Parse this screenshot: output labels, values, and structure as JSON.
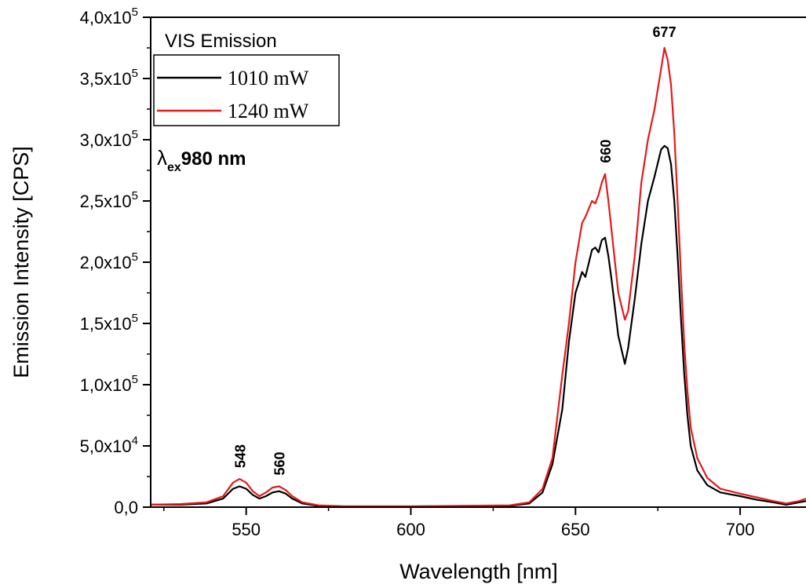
{
  "chart_data": {
    "type": "line",
    "xlabel": "Wavelength [nm]",
    "ylabel": "Emission Intensity [CPS]",
    "xlim": [
      521,
      720
    ],
    "ylim": [
      0,
      400000
    ],
    "x_ticks": [
      550,
      600,
      650,
      700
    ],
    "x_tick_labels": [
      "550",
      "600",
      "650",
      "700"
    ],
    "y_ticks": [
      {
        "value": 0,
        "mantissa": "0,0",
        "exponent": ""
      },
      {
        "value": 50000,
        "mantissa": "5,0x10",
        "exponent": "4"
      },
      {
        "value": 100000,
        "mantissa": "1,0x10",
        "exponent": "5"
      },
      {
        "value": 150000,
        "mantissa": "1,5x10",
        "exponent": "5"
      },
      {
        "value": 200000,
        "mantissa": "2,0x10",
        "exponent": "5"
      },
      {
        "value": 250000,
        "mantissa": "2,5x10",
        "exponent": "5"
      },
      {
        "value": 300000,
        "mantissa": "3,0x10",
        "exponent": "5"
      },
      {
        "value": 350000,
        "mantissa": "3,5x10",
        "exponent": "5"
      },
      {
        "value": 400000,
        "mantissa": "4,0x10",
        "exponent": "5"
      }
    ],
    "legend": {
      "title": "VIS Emission",
      "placement": "top-left"
    },
    "annotation": {
      "symbol": "λ",
      "subscript": "ex",
      "value": "980 nm"
    },
    "peak_labels": [
      {
        "text": "548",
        "x": 548,
        "y": 23000
      },
      {
        "text": "560",
        "x": 560,
        "y": 17000
      },
      {
        "text": "660",
        "x": 659,
        "y": 272000
      },
      {
        "text": "677",
        "x": 677,
        "y": 375000
      }
    ],
    "series": [
      {
        "name": "1010 mW",
        "color": "#000000",
        "points": [
          [
            521,
            2000
          ],
          [
            530,
            2000
          ],
          [
            538,
            3000
          ],
          [
            543,
            7000
          ],
          [
            546,
            15000
          ],
          [
            548,
            17000
          ],
          [
            550,
            15000
          ],
          [
            552,
            10000
          ],
          [
            554,
            7000
          ],
          [
            556,
            9000
          ],
          [
            558,
            12000
          ],
          [
            560,
            13000
          ],
          [
            562,
            11000
          ],
          [
            564,
            7000
          ],
          [
            567,
            3000
          ],
          [
            572,
            1000
          ],
          [
            580,
            500
          ],
          [
            600,
            500
          ],
          [
            620,
            1000
          ],
          [
            630,
            1000
          ],
          [
            636,
            3000
          ],
          [
            640,
            12000
          ],
          [
            643,
            35000
          ],
          [
            646,
            80000
          ],
          [
            648,
            135000
          ],
          [
            650,
            175000
          ],
          [
            652,
            192000
          ],
          [
            653,
            188000
          ],
          [
            655,
            210000
          ],
          [
            656,
            212000
          ],
          [
            657,
            208000
          ],
          [
            658,
            218000
          ],
          [
            659,
            220000
          ],
          [
            660,
            205000
          ],
          [
            661,
            185000
          ],
          [
            663,
            140000
          ],
          [
            665,
            117000
          ],
          [
            666,
            130000
          ],
          [
            668,
            170000
          ],
          [
            670,
            215000
          ],
          [
            672,
            250000
          ],
          [
            674,
            270000
          ],
          [
            676,
            292000
          ],
          [
            677,
            295000
          ],
          [
            678,
            293000
          ],
          [
            679,
            280000
          ],
          [
            680,
            250000
          ],
          [
            681,
            205000
          ],
          [
            682,
            155000
          ],
          [
            683,
            110000
          ],
          [
            684,
            75000
          ],
          [
            685,
            50000
          ],
          [
            687,
            30000
          ],
          [
            690,
            18000
          ],
          [
            694,
            12000
          ],
          [
            700,
            9000
          ],
          [
            705,
            6000
          ],
          [
            710,
            4000
          ],
          [
            714,
            2000
          ],
          [
            718,
            4000
          ],
          [
            720,
            5000
          ]
        ]
      },
      {
        "name": "1240 mW",
        "color": "#e31a1c",
        "points": [
          [
            521,
            2000
          ],
          [
            530,
            2500
          ],
          [
            538,
            4000
          ],
          [
            543,
            9000
          ],
          [
            546,
            20000
          ],
          [
            548,
            23000
          ],
          [
            550,
            20000
          ],
          [
            552,
            13000
          ],
          [
            554,
            9000
          ],
          [
            556,
            12000
          ],
          [
            558,
            16000
          ],
          [
            560,
            17000
          ],
          [
            562,
            14000
          ],
          [
            564,
            9000
          ],
          [
            567,
            4000
          ],
          [
            572,
            1500
          ],
          [
            580,
            800
          ],
          [
            600,
            800
          ],
          [
            620,
            1200
          ],
          [
            630,
            1500
          ],
          [
            636,
            4000
          ],
          [
            640,
            15000
          ],
          [
            643,
            40000
          ],
          [
            646,
            108000
          ],
          [
            648,
            150000
          ],
          [
            650,
            200000
          ],
          [
            652,
            232000
          ],
          [
            653,
            237000
          ],
          [
            655,
            250000
          ],
          [
            656,
            248000
          ],
          [
            657,
            255000
          ],
          [
            658,
            265000
          ],
          [
            659,
            272000
          ],
          [
            660,
            250000
          ],
          [
            661,
            225000
          ],
          [
            663,
            175000
          ],
          [
            665,
            153000
          ],
          [
            666,
            160000
          ],
          [
            668,
            205000
          ],
          [
            670,
            265000
          ],
          [
            672,
            300000
          ],
          [
            674,
            325000
          ],
          [
            676,
            358000
          ],
          [
            677,
            375000
          ],
          [
            678,
            365000
          ],
          [
            679,
            345000
          ],
          [
            680,
            305000
          ],
          [
            681,
            250000
          ],
          [
            682,
            190000
          ],
          [
            683,
            135000
          ],
          [
            684,
            95000
          ],
          [
            685,
            65000
          ],
          [
            687,
            40000
          ],
          [
            690,
            24000
          ],
          [
            694,
            15000
          ],
          [
            700,
            11000
          ],
          [
            705,
            8000
          ],
          [
            710,
            5000
          ],
          [
            714,
            3000
          ],
          [
            718,
            5000
          ],
          [
            720,
            7000
          ]
        ]
      }
    ]
  }
}
